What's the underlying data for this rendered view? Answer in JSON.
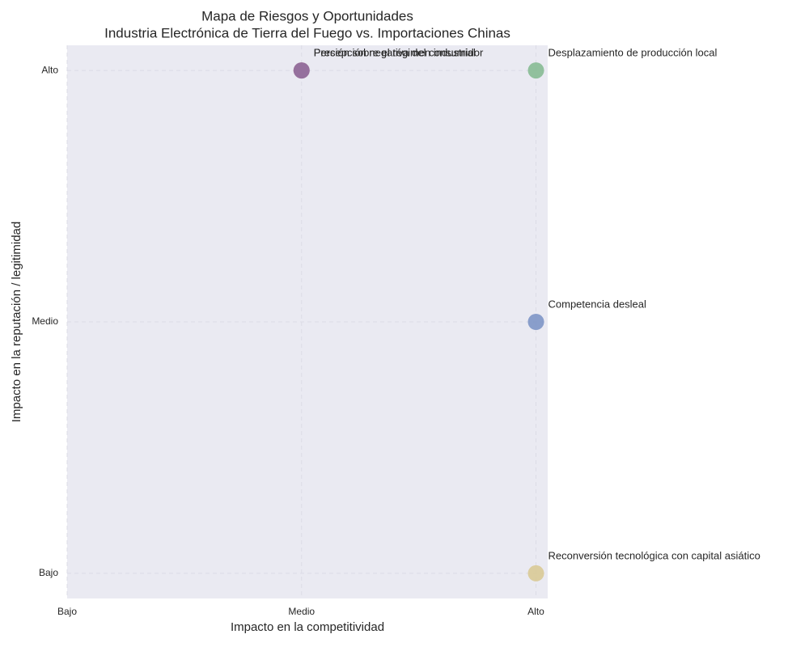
{
  "chart_data": {
    "type": "scatter",
    "title": "Mapa de Riesgos y Oportunidades",
    "subtitle": "Industria Electrónica de Tierra del Fuego vs. Importaciones Chinas",
    "x_label": "Impacto en la competitividad",
    "y_label": "Impacto en la reputación / legitimidad",
    "xlim": [
      0,
      2.05
    ],
    "ylim": [
      -0.1,
      2.1
    ],
    "xticks": [
      {
        "value": 0,
        "label": "Bajo"
      },
      {
        "value": 1,
        "label": "Medio"
      },
      {
        "value": 2,
        "label": "Alto"
      }
    ],
    "yticks": [
      {
        "value": 0,
        "label": "Bajo"
      },
      {
        "value": 1,
        "label": "Medio"
      },
      {
        "value": 2,
        "label": "Alto"
      }
    ],
    "grid": true,
    "series": [
      {
        "name": "Desplazamiento de producción local",
        "color": "#81b88e",
        "x": [
          2
        ],
        "values": [
          2
        ]
      },
      {
        "name": "Competencia desleal",
        "color": "#7891c4",
        "x": [
          2
        ],
        "values": [
          1
        ]
      },
      {
        "name": "Percepción negativa del consumidor",
        "color": "#c47a7e",
        "x": [
          1
        ],
        "values": [
          2
        ]
      },
      {
        "name": "Presión sobre el régimen industrial",
        "color": "#8c6ba0",
        "x": [
          1
        ],
        "values": [
          2
        ]
      },
      {
        "name": "Reconversión tecnológica con capital asiático",
        "color": "#d8c890",
        "x": [
          2
        ],
        "values": [
          0
        ]
      }
    ]
  }
}
